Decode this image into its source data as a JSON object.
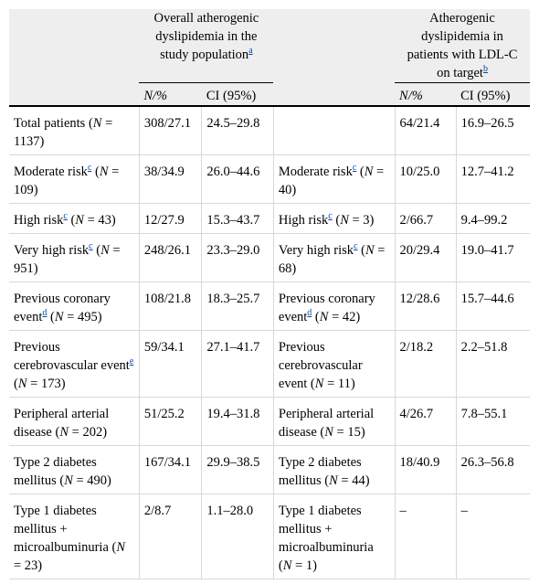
{
  "header": {
    "group1": "Overall atherogenic dyslipidemia in the study population",
    "group1_fn": "a",
    "group2": "Atherogenic dyslipidemia in patients with LDL-C on target",
    "group2_fn": "b",
    "col_n": "N/%",
    "col_ci": "CI (95%)"
  },
  "rows": [
    {
      "pre": "Total patients (",
      "n": "N",
      "post": " = 1137)",
      "fn": "",
      "n1": "308/27.1",
      "ci1": "24.5–29.8",
      "pre2": "",
      "n_2": "",
      "post2": "",
      "fn2": "",
      "n2": "64/21.4",
      "ci2": "16.9–26.5"
    },
    {
      "pre": "Moderate risk",
      "fn": "c",
      "mid": " (",
      "n": "N",
      "post": " = 109)",
      "n1": "38/34.9",
      "ci1": "26.0–44.6",
      "pre2": "Moderate risk",
      "fn2": "c",
      "mid2": " (",
      "n_2": "N",
      "post2": " = 40)",
      "n2": "10/25.0",
      "ci2": "12.7–41.2"
    },
    {
      "pre": "High risk",
      "fn": "c",
      "mid": " (",
      "n": "N",
      "post": " = 43)",
      "n1": "12/27.9",
      "ci1": "15.3–43.7",
      "pre2": "High risk",
      "fn2": "c",
      "mid2": " (",
      "n_2": "N",
      "post2": " = 3)",
      "n2": "2/66.7",
      "ci2": "9.4–99.2"
    },
    {
      "pre": "Very high risk",
      "fn": "c",
      "mid": " (",
      "n": "N",
      "post": " = 951)",
      "n1": "248/26.1",
      "ci1": "23.3–29.0",
      "pre2": "Very high risk",
      "fn2": "c",
      "mid2": " (",
      "n_2": "N",
      "post2": " = 68)",
      "n2": "20/29.4",
      "ci2": "19.0–41.7"
    },
    {
      "pre": "Previous coronary event",
      "fn": "d",
      "mid": " (",
      "n": "N",
      "post": " = 495)",
      "n1": "108/21.8",
      "ci1": "18.3–25.7",
      "pre2": "Previous coronary event",
      "fn2": "d",
      "mid2": " (",
      "n_2": "N",
      "post2": " = 42)",
      "n2": "12/28.6",
      "ci2": "15.7–44.6"
    },
    {
      "pre": "Previous cerebrovascular event",
      "fn": "e",
      "mid": " (",
      "n": "N",
      "post": " = 173)",
      "n1": "59/34.1",
      "ci1": "27.1–41.7",
      "pre2": "Previous cerebrovascular event",
      "fn2": "",
      "mid2": " (",
      "n_2": "N",
      "post2": " = 11)",
      "n2": "2/18.2",
      "ci2": "2.2–51.8"
    },
    {
      "pre": "Peripheral arterial disease",
      "fn": "",
      "mid": " (",
      "n": "N",
      "post": " = 202)",
      "n1": "51/25.2",
      "ci1": "19.4–31.8",
      "pre2": "Peripheral arterial disease",
      "fn2": "",
      "mid2": " (",
      "n_2": "N",
      "post2": " = 15)",
      "n2": "4/26.7",
      "ci2": "7.8–55.1"
    },
    {
      "pre": "Type 2 diabetes mellitus",
      "fn": "",
      "mid": " (",
      "n": "N",
      "post": " = 490)",
      "n1": "167/34.1",
      "ci1": "29.9–38.5",
      "pre2": "Type 2 diabetes mellitus",
      "fn2": "",
      "mid2": " (",
      "n_2": "N",
      "post2": " = 44)",
      "n2": "18/40.9",
      "ci2": "26.3–56.8"
    },
    {
      "pre": "Type 1 diabetes mellitus + microalbuminuria",
      "fn": "",
      "mid": " (",
      "n": "N",
      "post": " = 23)",
      "n1": "2/8.7",
      "ci1": "1.1–28.0",
      "pre2": "Type 1 diabetes mellitus + microalbuminuria",
      "fn2": "",
      "mid2": " (",
      "n_2": "N",
      "post2": " = 1)",
      "n2": "–",
      "ci2": "–"
    }
  ]
}
